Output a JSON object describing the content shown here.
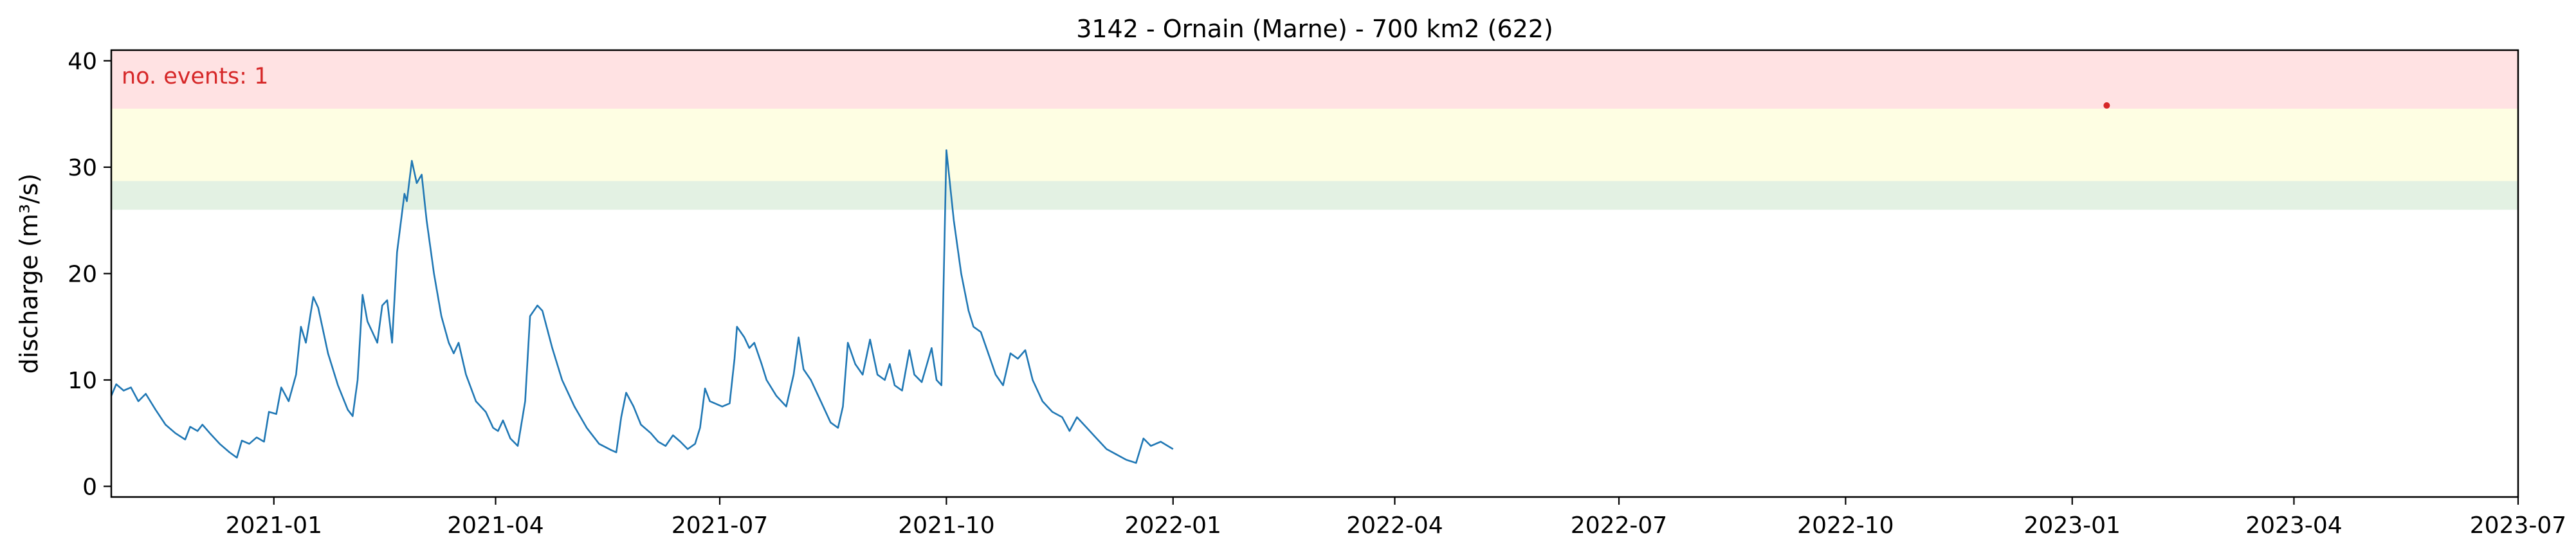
{
  "chart_data": {
    "type": "line",
    "title": "3142 - Ornain (Marne) - 700 km2 (622)",
    "xlabel": "",
    "ylabel": "discharge (m³/s)",
    "xlim": [
      "2020-10-27",
      "2023-07-01"
    ],
    "ylim": [
      -1,
      41
    ],
    "grid": false,
    "x_ticks": [
      "2021-01-01",
      "2021-04-01",
      "2021-07-01",
      "2021-10-01",
      "2022-01-01",
      "2022-04-01",
      "2022-07-01",
      "2022-10-01",
      "2023-01-01",
      "2023-04-01",
      "2023-07-01"
    ],
    "x_tick_labels": [
      "2021-01",
      "2021-04",
      "2021-07",
      "2021-10",
      "2022-01",
      "2022-04",
      "2022-07",
      "2022-10",
      "2023-01",
      "2023-04",
      "2023-07"
    ],
    "y_ticks": [
      0,
      10,
      20,
      30,
      40
    ],
    "thresholds": [
      {
        "from": 26.0,
        "to": 28.7,
        "color": "#e3f1e3"
      },
      {
        "from": 28.7,
        "to": 35.5,
        "color": "#fefee3"
      },
      {
        "from": 35.5,
        "to": 41,
        "color": "#ffe2e3"
      }
    ],
    "annotation": {
      "text": "no. events: 1",
      "color": "#d62728"
    },
    "events": [
      {
        "x": "2023-01-15",
        "y": 35.8,
        "color": "#d62728"
      }
    ],
    "series": [
      {
        "color": "#1f77b4",
        "points": [
          [
            "2020-10-27",
            8.5
          ],
          [
            "2020-10-29",
            9.6
          ],
          [
            "2020-11-01",
            9.0
          ],
          [
            "2020-11-04",
            9.3
          ],
          [
            "2020-11-07",
            8.0
          ],
          [
            "2020-11-10",
            8.7
          ],
          [
            "2020-11-14",
            7.2
          ],
          [
            "2020-11-18",
            5.8
          ],
          [
            "2020-11-22",
            5.0
          ],
          [
            "2020-11-26",
            4.4
          ],
          [
            "2020-11-28",
            5.6
          ],
          [
            "2020-12-01",
            5.2
          ],
          [
            "2020-12-03",
            5.8
          ],
          [
            "2020-12-06",
            5.0
          ],
          [
            "2020-12-10",
            4.0
          ],
          [
            "2020-12-14",
            3.2
          ],
          [
            "2020-12-17",
            2.7
          ],
          [
            "2020-12-19",
            4.3
          ],
          [
            "2020-12-22",
            4.0
          ],
          [
            "2020-12-25",
            4.6
          ],
          [
            "2020-12-28",
            4.2
          ],
          [
            "2020-12-30",
            7.0
          ],
          [
            "2021-01-02",
            6.8
          ],
          [
            "2021-01-04",
            9.3
          ],
          [
            "2021-01-07",
            8.0
          ],
          [
            "2021-01-10",
            10.5
          ],
          [
            "2021-01-12",
            15.0
          ],
          [
            "2021-01-14",
            13.5
          ],
          [
            "2021-01-17",
            17.8
          ],
          [
            "2021-01-19",
            16.8
          ],
          [
            "2021-01-23",
            12.5
          ],
          [
            "2021-01-27",
            9.5
          ],
          [
            "2021-01-31",
            7.2
          ],
          [
            "2021-02-02",
            6.6
          ],
          [
            "2021-02-04",
            10.0
          ],
          [
            "2021-02-06",
            18.0
          ],
          [
            "2021-02-08",
            15.5
          ],
          [
            "2021-02-10",
            14.5
          ],
          [
            "2021-02-12",
            13.5
          ],
          [
            "2021-02-14",
            17.0
          ],
          [
            "2021-02-16",
            17.5
          ],
          [
            "2021-02-18",
            13.5
          ],
          [
            "2021-02-20",
            22.0
          ],
          [
            "2021-02-23",
            27.5
          ],
          [
            "2021-02-24",
            26.8
          ],
          [
            "2021-02-26",
            30.6
          ],
          [
            "2021-02-28",
            28.5
          ],
          [
            "2021-03-02",
            29.3
          ],
          [
            "2021-03-04",
            25.0
          ],
          [
            "2021-03-07",
            20.0
          ],
          [
            "2021-03-10",
            16.0
          ],
          [
            "2021-03-13",
            13.5
          ],
          [
            "2021-03-15",
            12.5
          ],
          [
            "2021-03-17",
            13.5
          ],
          [
            "2021-03-20",
            10.5
          ],
          [
            "2021-03-24",
            8.0
          ],
          [
            "2021-03-28",
            7.0
          ],
          [
            "2021-03-31",
            5.5
          ],
          [
            "2021-04-02",
            5.2
          ],
          [
            "2021-04-04",
            6.2
          ],
          [
            "2021-04-07",
            4.5
          ],
          [
            "2021-04-10",
            3.8
          ],
          [
            "2021-04-13",
            8.0
          ],
          [
            "2021-04-15",
            16.0
          ],
          [
            "2021-04-18",
            17.0
          ],
          [
            "2021-04-20",
            16.5
          ],
          [
            "2021-04-24",
            13.0
          ],
          [
            "2021-04-28",
            10.0
          ],
          [
            "2021-05-03",
            7.5
          ],
          [
            "2021-05-08",
            5.5
          ],
          [
            "2021-05-13",
            4.0
          ],
          [
            "2021-05-18",
            3.4
          ],
          [
            "2021-05-20",
            3.2
          ],
          [
            "2021-05-22",
            6.5
          ],
          [
            "2021-05-24",
            8.8
          ],
          [
            "2021-05-27",
            7.5
          ],
          [
            "2021-05-30",
            5.8
          ],
          [
            "2021-06-03",
            5.0
          ],
          [
            "2021-06-06",
            4.2
          ],
          [
            "2021-06-09",
            3.8
          ],
          [
            "2021-06-12",
            4.8
          ],
          [
            "2021-06-15",
            4.2
          ],
          [
            "2021-06-18",
            3.5
          ],
          [
            "2021-06-21",
            4.0
          ],
          [
            "2021-06-23",
            5.5
          ],
          [
            "2021-06-25",
            9.2
          ],
          [
            "2021-06-27",
            8.0
          ],
          [
            "2021-07-02",
            7.5
          ],
          [
            "2021-07-05",
            7.8
          ],
          [
            "2021-07-07",
            12.0
          ],
          [
            "2021-07-08",
            15.0
          ],
          [
            "2021-07-11",
            14.0
          ],
          [
            "2021-07-13",
            13.0
          ],
          [
            "2021-07-15",
            13.5
          ],
          [
            "2021-07-18",
            11.5
          ],
          [
            "2021-07-20",
            10.0
          ],
          [
            "2021-07-24",
            8.5
          ],
          [
            "2021-07-28",
            7.5
          ],
          [
            "2021-07-31",
            10.5
          ],
          [
            "2021-08-02",
            14.0
          ],
          [
            "2021-08-04",
            11.0
          ],
          [
            "2021-08-07",
            10.0
          ],
          [
            "2021-08-11",
            8.0
          ],
          [
            "2021-08-15",
            6.0
          ],
          [
            "2021-08-18",
            5.5
          ],
          [
            "2021-08-20",
            7.5
          ],
          [
            "2021-08-22",
            13.5
          ],
          [
            "2021-08-25",
            11.5
          ],
          [
            "2021-08-28",
            10.5
          ],
          [
            "2021-08-31",
            13.8
          ],
          [
            "2021-09-03",
            10.5
          ],
          [
            "2021-09-06",
            10.0
          ],
          [
            "2021-09-08",
            11.5
          ],
          [
            "2021-09-10",
            9.5
          ],
          [
            "2021-09-13",
            9.0
          ],
          [
            "2021-09-16",
            12.8
          ],
          [
            "2021-09-18",
            10.5
          ],
          [
            "2021-09-21",
            9.8
          ],
          [
            "2021-09-25",
            13.0
          ],
          [
            "2021-09-27",
            10.0
          ],
          [
            "2021-09-29",
            9.5
          ],
          [
            "2021-10-01",
            31.6
          ],
          [
            "2021-10-04",
            25.0
          ],
          [
            "2021-10-07",
            20.0
          ],
          [
            "2021-10-10",
            16.5
          ],
          [
            "2021-10-12",
            15.0
          ],
          [
            "2021-10-15",
            14.5
          ],
          [
            "2021-10-18",
            12.5
          ],
          [
            "2021-10-21",
            10.5
          ],
          [
            "2021-10-24",
            9.5
          ],
          [
            "2021-10-27",
            12.5
          ],
          [
            "2021-10-30",
            12.0
          ],
          [
            "2021-11-02",
            12.8
          ],
          [
            "2021-11-05",
            10.0
          ],
          [
            "2021-11-09",
            8.0
          ],
          [
            "2021-11-13",
            7.0
          ],
          [
            "2021-11-17",
            6.5
          ],
          [
            "2021-11-20",
            5.2
          ],
          [
            "2021-11-23",
            6.5
          ],
          [
            "2021-11-27",
            5.5
          ],
          [
            "2021-12-01",
            4.5
          ],
          [
            "2021-12-05",
            3.5
          ],
          [
            "2021-12-09",
            3.0
          ],
          [
            "2021-12-13",
            2.5
          ],
          [
            "2021-12-17",
            2.2
          ],
          [
            "2021-12-20",
            4.5
          ],
          [
            "2021-12-23",
            3.8
          ],
          [
            "2021-12-27",
            4.2
          ],
          [
            "2022-01-01",
            3.5
          ]
        ]
      }
    ]
  }
}
